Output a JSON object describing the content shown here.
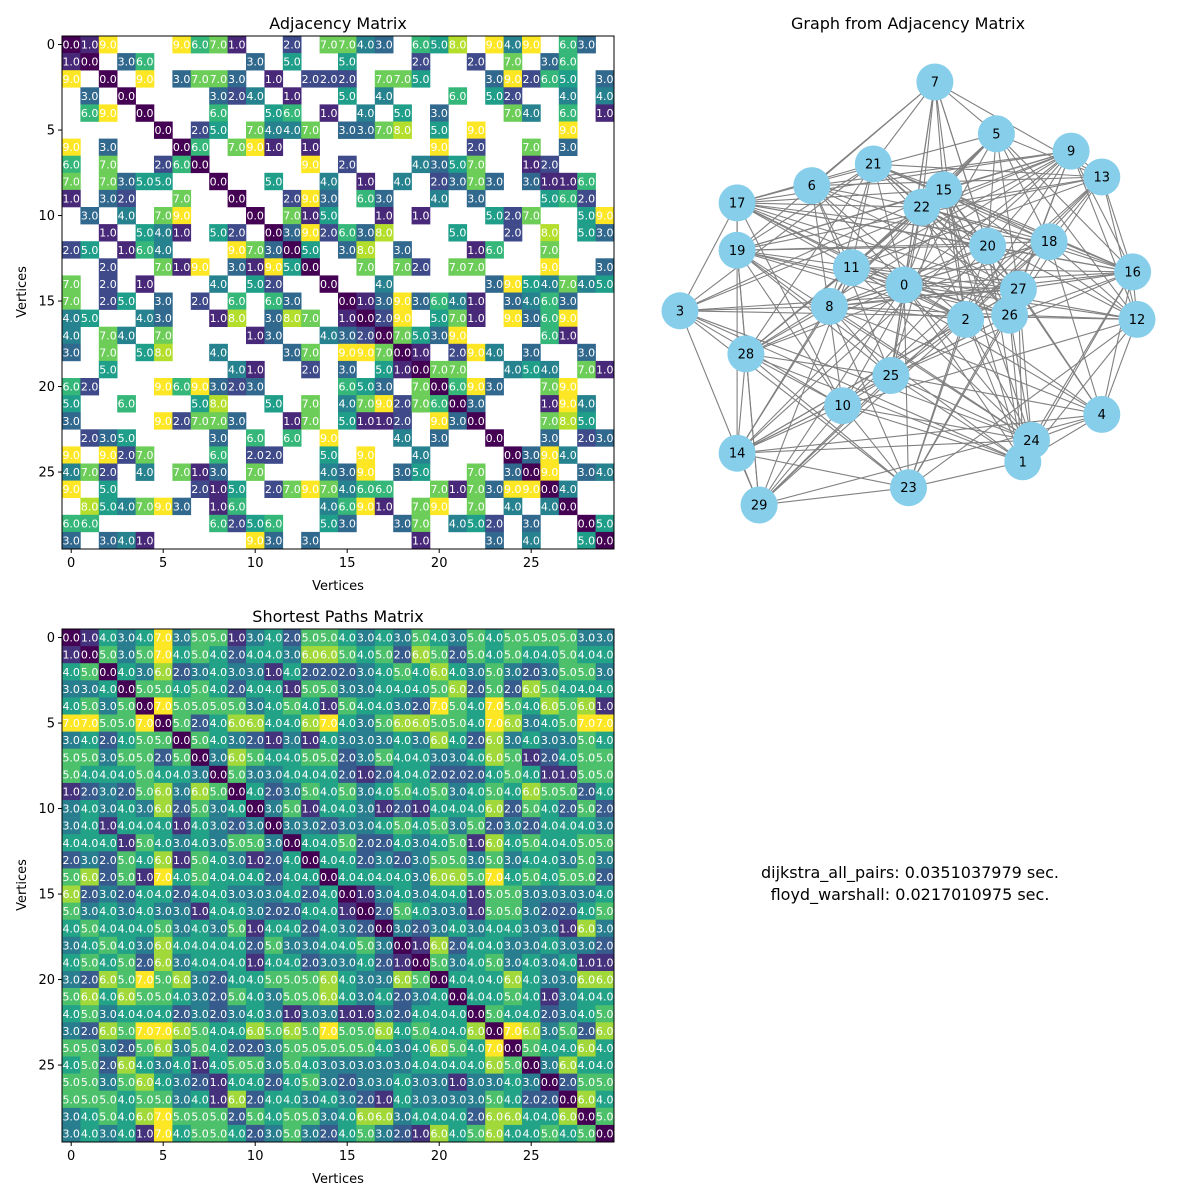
{
  "chart_data": [
    {
      "type": "heatmap",
      "title": "Adjacency Matrix",
      "xlabel": "Vertices",
      "ylabel": "Vertices",
      "size": 30,
      "colormap": "viridis",
      "vmin": 0,
      "vmax": 9,
      "xticks": [
        0,
        5,
        10,
        15,
        20,
        25
      ],
      "yticks": [
        0,
        5,
        10,
        15,
        20,
        25
      ],
      "note": "blank (white) cells are missing edges",
      "rows": [
        "0 1 9 _ _ _ 9 6 7 1 _ _ 2 _ 7 7 4 3 _ 6 5 8 _ 9 4 9 _ 6 3 _",
        "1 0 _ 3 6 _ _ _ _ _ 3 _ 5 _ _ 5 _ _ _ 2 _ _ 2 _ 7 _ 3 6 _ _",
        "9 _ 0 _ 9 _ 3 7 7 3 _ 1 _ 2 2 2 _ 7 7 5 _ _ _ 3 9 2 6 5 _ 3",
        "_ 3 _ 0 _ _ _ _ 3 2 4 _ 1 _ _ 5 _ 4 _ _ _ 6 _ 5 2 _ _ 4 _ 4",
        "_ 6 9 _ 0 _ _ _ 6 _ _ 5 6 _ 1 _ 4 _ 5 _ 3 _ _ _ 7 4 _ 6 _ 1",
        "_ _ _ _ _ 0 _ 2 5 _ 7 4 4 7 _ 3 3 7 8 _ 5 _ 9 _ _ _ _ 9 _ _",
        "9 _ 3 _ _ _ 0 6 _ 7 9 1 _ 1 _ _ _ _ _ _ 9 _ 2 _ _ 7 _ 3 _ _",
        "6 _ 7 _ _ 2 6 0 _ _ _ _ _ 9 _ 2 _ _ _ 4 3 5 7 _ _ 1 2 _ _ _",
        "7 _ 7 3 5 5 _ _ 0 _ _ 5 _ _ 4 _ 1 _ 4 _ 2 3 7 3 _ 3 1 1 6 _",
        "1 _ 3 2 _ _ 7 _ _ 0 _ _ 2 9 3 _ 6 3 _ _ 4 _ 3 _ _ _ 5 6 2 _",
        "_ 3 _ 4 _ 7 9 _ _ _ 0 _ 7 1 5 _ _ 1 _ 1 _ _ _ 5 2 7 _ _ 5 9",
        "_ _ 1 _ 5 4 1 _ 5 2 _ 0 3 9 2 6 3 8 _ _ _ 5 _ _ 2 _ 8 _ 5 3",
        "2 5 _ 1 6 4 _ _ _ 9 7 3 0 5 _ 3 8 _ 3 _ _ _ 1 6 _ _ 7 _ _ _",
        "_ _ 2 _ _ 7 1 9 _ 3 1 9 5 0 _ _ 7 _ 7 2 _ 7 7 _ _ _ 9 _ _ 3",
        "7 _ 2 _ 1 _ _ _ 4 _ 5 2 _ _ 0 _ _ 4 _ _ _ _ _ 3 9 5 4 7 4 5",
        "7 _ 2 5 _ 3 _ 2 _ 6 _ 6 3 _ _ 0 1 3 9 3 6 4 1 _ 3 4 6 3 _ _",
        "4 5 _ _ 4 3 _ _ 1 8 _ 3 8 7 _ 1 0 2 9 _ 5 7 1 _ 9 3 6 9 _ _",
        "4 _ 7 4 _ 7 _ _ _ _ 1 3 _ _ 4 3 2 0 7 5 3 9 _ _ _ _ 6 1 _ _",
        "3 _ 7 _ 5 8 _ _ 4 _ _ _ 3 7 _ 9 9 7 0 1 _ 2 9 4 _ 3 _ _ 3 _",
        "_ _ 5 _ _ _ _ _ _ 4 1 _ _ 2 _ 3 _ 5 1 0 7 7 _ _ 4 5 4 _ 7 1",
        "6 2 _ _ _ 9 6 9 3 2 3 _ _ _ _ 6 5 3 _ 7 0 6 9 3 _ _ 7 9 _ _",
        "5 _ _ 6 _ _ _ 5 8 _ _ 5 _ 7 _ 4 7 9 2 7 6 0 3 _ _ _ 1 9 4 _",
        "3 _ _ _ _ 9 2 7 7 3 _ _ 1 7 _ 5 1 1 2 _ 9 3 0 _ _ _ 7 8 5 _",
        "_ 2 3 5 _ _ _ _ 3 _ 6 _ 6 _ 9 _ _ _ 4 _ 3 _ _ 0 _ _ 3 _ 2 3",
        "9 _ 9 2 7 _ _ _ 6 _ 2 2 _ _ 5 _ 9 _ _ 4 _ _ _ _ 0 3 9 4 _ _",
        "4 7 2 _ 4 _ 7 1 3 _ 7 _ _ _ 4 3 9 _ 3 5 _ _ 7 _ 3 0 9 _ 3 4",
        "9 _ 5 _ _ _ _ 2 1 5 _ 2 7 9 7 4 6 6 _ _ 7 1 7 3 9 9 0 4 _ _",
        "_ 8 5 4 7 9 3 _ 1 6 _ _ _ _ 4 6 9 1 _ 7 9 _ 7 _ 4 _ 4 0 _ _",
        "6 6 _ _ _ _ _ _ 6 2 5 6 _ _ 5 3 _ _ 3 7 _ 4 5 2 _ 3 _ _ 0 5",
        "3 _ 3 4 1 _ _ _ _ _ 9 3 _ 3 _ _ _ _ _ 1 _ _ _ 3 _ 4 _ _ 5 0"
      ]
    },
    {
      "type": "network",
      "title": "Graph from Adjacency Matrix",
      "nodes": [
        {
          "id": "0",
          "x": 0.41,
          "y": 0.48
        },
        {
          "id": "1",
          "x": 0.68,
          "y": 0.07
        },
        {
          "id": "2",
          "x": 0.55,
          "y": 0.4
        },
        {
          "id": "3",
          "x": -0.1,
          "y": 0.42
        },
        {
          "id": "4",
          "x": 0.86,
          "y": 0.18
        },
        {
          "id": "5",
          "x": 0.62,
          "y": 0.83
        },
        {
          "id": "6",
          "x": 0.2,
          "y": 0.71
        },
        {
          "id": "7",
          "x": 0.48,
          "y": 0.95
        },
        {
          "id": "8",
          "x": 0.24,
          "y": 0.43
        },
        {
          "id": "9",
          "x": 0.79,
          "y": 0.79
        },
        {
          "id": "10",
          "x": 0.27,
          "y": 0.2
        },
        {
          "id": "11",
          "x": 0.29,
          "y": 0.52
        },
        {
          "id": "12",
          "x": 0.94,
          "y": 0.4
        },
        {
          "id": "13",
          "x": 0.86,
          "y": 0.73
        },
        {
          "id": "14",
          "x": 0.03,
          "y": 0.09
        },
        {
          "id": "15",
          "x": 0.5,
          "y": 0.7
        },
        {
          "id": "16",
          "x": 0.93,
          "y": 0.51
        },
        {
          "id": "17",
          "x": 0.03,
          "y": 0.67
        },
        {
          "id": "18",
          "x": 0.74,
          "y": 0.58
        },
        {
          "id": "19",
          "x": 0.03,
          "y": 0.56
        },
        {
          "id": "20",
          "x": 0.6,
          "y": 0.57
        },
        {
          "id": "21",
          "x": 0.34,
          "y": 0.76
        },
        {
          "id": "22",
          "x": 0.45,
          "y": 0.66
        },
        {
          "id": "23",
          "x": 0.42,
          "y": 0.01
        },
        {
          "id": "24",
          "x": 0.7,
          "y": 0.12
        },
        {
          "id": "25",
          "x": 0.38,
          "y": 0.27
        },
        {
          "id": "26",
          "x": 0.65,
          "y": 0.41
        },
        {
          "id": "27",
          "x": 0.67,
          "y": 0.47
        },
        {
          "id": "28",
          "x": 0.05,
          "y": 0.32
        },
        {
          "id": "29",
          "x": 0.08,
          "y": -0.03
        }
      ],
      "node_color": "#87ceeb",
      "edge_color": "#808080",
      "edge_source": "nonzero off-diagonal cells of the adjacency matrix"
    },
    {
      "type": "heatmap",
      "title": "Shortest Paths Matrix",
      "xlabel": "Vertices",
      "ylabel": "Vertices",
      "size": 30,
      "colormap": "viridis",
      "vmin": 0,
      "vmax": 7,
      "xticks": [
        0,
        5,
        10,
        15,
        20,
        25
      ],
      "yticks": [
        0,
        5,
        10,
        15,
        20,
        25
      ],
      "rows": [
        "0 1 4 3 4 7 3 5 5 1 3 4 2 5 5 4 3 4 3 5 4 3 5 4 5 5 5 5 3 3",
        "1 0 5 3 5 7 4 5 4 2 4 4 3 6 6 5 4 5 2 6 5 2 5 4 5 4 4 5 4 4",
        "4 5 0 4 3 6 2 3 4 3 3 1 4 2 2 2 3 4 5 4 6 4 3 5 3 2 3 5 5 3",
        "3 3 4 0 5 5 4 5 4 2 4 4 1 5 5 3 3 4 4 4 5 6 2 5 2 6 5 4 4 4",
        "4 5 3 5 0 7 5 5 5 5 3 4 5 4 1 5 4 4 3 2 7 5 4 7 5 4 6 5 6 1",
        "7 7 5 5 7 0 5 2 4 6 6 4 4 6 7 4 3 5 6 6 5 5 4 7 6 3 4 5 7 7",
        "3 4 2 4 5 5 0 5 4 3 2 1 3 1 4 3 3 3 4 3 6 4 2 6 3 4 3 3 5 4",
        "5 5 3 5 5 2 5 0 3 6 5 4 4 5 5 2 3 5 4 4 3 3 4 6 5 1 2 4 5 5",
        "5 4 4 4 5 4 4 3 0 5 3 3 4 4 4 2 1 2 4 4 2 2 2 4 5 4 1 1 5 5",
        "1 2 3 2 5 6 3 6 5 0 4 2 3 5 4 5 3 4 5 4 5 3 4 5 4 6 5 5 2 4",
        "3 4 3 4 3 6 2 5 3 4 0 3 5 1 4 4 3 1 2 1 4 4 4 6 2 5 4 2 5 2",
        "3 4 1 4 4 4 1 4 3 2 3 0 3 3 2 3 3 4 5 4 5 3 5 2 3 2 4 4 4 3",
        "4 4 4 1 5 4 3 4 3 5 5 3 0 4 4 5 2 2 4 3 4 5 1 6 4 5 4 4 5 5",
        "2 3 2 5 4 6 1 5 4 3 1 2 4 0 4 4 2 3 2 3 5 5 3 5 3 4 4 3 5 3",
        "5 6 2 5 1 7 4 5 4 4 4 2 4 4 0 4 4 4 4 3 6 6 5 7 4 5 4 5 5 2",
        "6 2 3 2 4 4 2 4 4 3 3 3 4 2 4 0 1 3 4 3 4 4 1 5 5 3 3 3 3 4",
        "5 3 4 3 4 3 3 1 4 4 3 2 2 4 4 1 0 2 5 4 3 3 1 5 5 3 2 2 4 5",
        "4 5 4 4 4 5 3 4 3 5 1 4 4 2 4 3 2 0 3 2 3 4 3 4 4 3 3 1 6 3",
        "3 4 5 4 3 6 4 4 4 4 2 5 3 3 4 4 5 3 0 1 6 2 4 4 3 3 4 3 3 2",
        "4 5 4 5 2 6 3 4 4 4 1 4 4 2 3 3 4 2 1 0 5 3 4 5 3 4 3 4 1 1",
        "3 2 6 5 7 5 6 3 2 4 4 5 5 5 6 4 3 3 6 5 0 4 4 4 6 4 3 3 6 6",
        "5 6 4 6 5 5 4 3 2 5 4 3 5 5 6 4 3 4 2 3 4 0 4 4 5 4 1 3 4 4",
        "4 5 3 4 4 4 2 3 2 3 4 3 1 3 3 1 1 3 2 4 4 4 0 5 4 4 2 3 4 5",
        "3 2 6 5 7 7 6 5 4 4 6 5 6 5 7 5 5 6 4 5 4 4 6 0 7 6 3 5 2 6",
        "5 5 3 2 5 6 3 5 4 2 2 3 5 5 5 5 5 4 3 4 6 5 4 7 0 5 4 4 6 4",
        "4 5 2 6 4 3 4 1 4 5 5 3 5 4 3 3 3 3 3 4 4 4 4 6 5 0 3 6 4 4",
        "5 5 3 5 6 4 3 2 1 4 4 2 4 5 3 2 3 3 4 3 3 1 3 3 4 3 0 2 5 5",
        "5 5 5 4 5 5 3 4 1 6 2 4 4 3 4 3 2 1 4 3 3 3 3 5 4 2 2 0 6 4",
        "3 4 5 4 6 7 5 5 5 2 5 4 5 5 3 4 6 6 3 4 4 4 2 6 6 4 4 6 0 5",
        "3 4 3 4 1 7 4 5 5 4 2 3 5 3 2 4 5 3 2 1 6 4 5 6 4 4 5 4 5 0"
      ]
    }
  ],
  "timings": {
    "line1": "dijkstra_all_pairs: 0.0351037979 sec.",
    "line2": "floyd_warshall: 0.0217010975 sec."
  }
}
